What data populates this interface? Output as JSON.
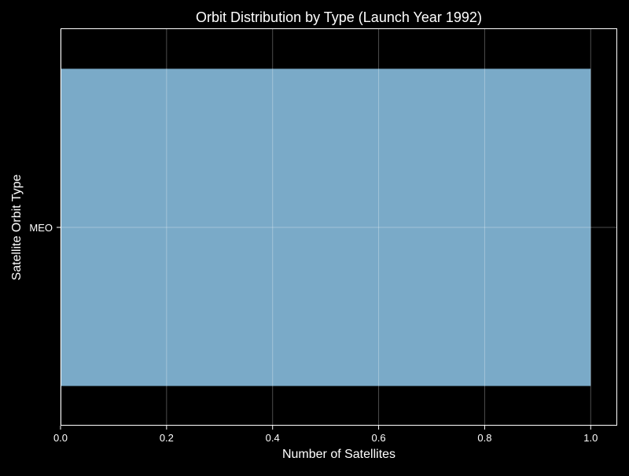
{
  "chart_data": {
    "type": "bar",
    "orientation": "horizontal",
    "title": "Orbit Distribution by Type (Launch Year 1992)",
    "xlabel": "Number of Satellites",
    "ylabel": "Satellite Orbit Type",
    "categories": [
      "MEO"
    ],
    "values": [
      1
    ],
    "xlim": [
      0,
      1.05
    ],
    "xticks": [
      0.0,
      0.2,
      0.4,
      0.6,
      0.8,
      1.0
    ],
    "xtick_labels": [
      "0.0",
      "0.2",
      "0.4",
      "0.6",
      "0.8",
      "1.0"
    ],
    "grid": true,
    "legend": "none"
  },
  "colors": {
    "background": "#000000",
    "bar": "#7aaac8",
    "axis": "#ffffff",
    "grid": "#5a5a5a",
    "text": "#ffffff"
  }
}
